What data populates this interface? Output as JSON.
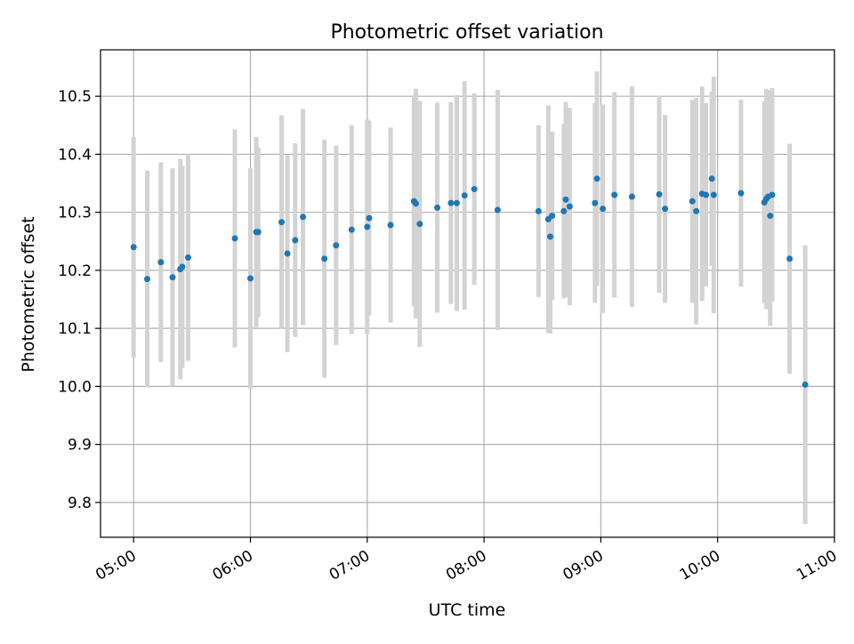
{
  "chart_data": {
    "type": "scatter",
    "title": "Photometric offset variation",
    "xlabel": "UTC time",
    "ylabel": "Photometric offset",
    "x_unit": "UTC time (HH:MM)",
    "x_tick_labels": [
      "05:00",
      "06:00",
      "07:00",
      "08:00",
      "09:00",
      "10:00",
      "11:00"
    ],
    "y_ticks": [
      9.8,
      9.9,
      10.0,
      10.1,
      10.2,
      10.3,
      10.4,
      10.5
    ],
    "y_tick_labels": [
      "9.8",
      "9.9",
      "10.0",
      "10.1",
      "10.2",
      "10.3",
      "10.4",
      "10.5"
    ],
    "xlim": [
      "04:43",
      "11:00"
    ],
    "ylim": [
      9.74,
      10.58
    ],
    "grid": true,
    "legend": "none",
    "colors": {
      "points": "#1f77b4",
      "errorbars": "#d3d3d3",
      "grid": "#b0b0b0"
    },
    "series": [
      {
        "points": [
          {
            "x": "05:00",
            "y": 10.24,
            "err": 0.19
          },
          {
            "x": "05:07",
            "y": 10.185,
            "err": 0.187
          },
          {
            "x": "05:14",
            "y": 10.214,
            "err": 0.172
          },
          {
            "x": "05:20",
            "y": 10.188,
            "err": 0.188
          },
          {
            "x": "05:24",
            "y": 10.202,
            "err": 0.19
          },
          {
            "x": "05:25",
            "y": 10.206,
            "err": 0.174
          },
          {
            "x": "05:28",
            "y": 10.222,
            "err": 0.178
          },
          {
            "x": "05:52",
            "y": 10.255,
            "err": 0.188
          },
          {
            "x": "06:00",
            "y": 10.186,
            "err": 0.19
          },
          {
            "x": "06:03",
            "y": 10.266,
            "err": 0.164
          },
          {
            "x": "06:04",
            "y": 10.266,
            "err": 0.146
          },
          {
            "x": "06:16",
            "y": 10.283,
            "err": 0.184
          },
          {
            "x": "06:19",
            "y": 10.229,
            "err": 0.17
          },
          {
            "x": "06:23",
            "y": 10.252,
            "err": 0.167
          },
          {
            "x": "06:27",
            "y": 10.292,
            "err": 0.186
          },
          {
            "x": "06:38",
            "y": 10.22,
            "err": 0.205
          },
          {
            "x": "06:44",
            "y": 10.243,
            "err": 0.172
          },
          {
            "x": "06:52",
            "y": 10.27,
            "err": 0.18
          },
          {
            "x": "07:00",
            "y": 10.275,
            "err": 0.185
          },
          {
            "x": "07:01",
            "y": 10.29,
            "err": 0.168
          },
          {
            "x": "07:12",
            "y": 10.278,
            "err": 0.168
          },
          {
            "x": "07:24",
            "y": 10.319,
            "err": 0.181
          },
          {
            "x": "07:25",
            "y": 10.315,
            "err": 0.198
          },
          {
            "x": "07:27",
            "y": 10.28,
            "err": 0.212
          },
          {
            "x": "07:36",
            "y": 10.308,
            "err": 0.181
          },
          {
            "x": "07:43",
            "y": 10.316,
            "err": 0.174
          },
          {
            "x": "07:46",
            "y": 10.316,
            "err": 0.186
          },
          {
            "x": "07:50",
            "y": 10.329,
            "err": 0.197
          },
          {
            "x": "07:55",
            "y": 10.34,
            "err": 0.165
          },
          {
            "x": "08:07",
            "y": 10.304,
            "err": 0.207
          },
          {
            "x": "08:28",
            "y": 10.302,
            "err": 0.148
          },
          {
            "x": "08:33",
            "y": 10.288,
            "err": 0.196
          },
          {
            "x": "08:34",
            "y": 10.258,
            "err": 0.167
          },
          {
            "x": "08:35",
            "y": 10.294,
            "err": 0.145
          },
          {
            "x": "08:41",
            "y": 10.302,
            "err": 0.15
          },
          {
            "x": "08:42",
            "y": 10.322,
            "err": 0.168
          },
          {
            "x": "08:44",
            "y": 10.31,
            "err": 0.17
          },
          {
            "x": "08:57",
            "y": 10.316,
            "err": 0.172
          },
          {
            "x": "08:58",
            "y": 10.358,
            "err": 0.185
          },
          {
            "x": "09:01",
            "y": 10.306,
            "err": 0.18
          },
          {
            "x": "09:07",
            "y": 10.33,
            "err": 0.177
          },
          {
            "x": "09:16",
            "y": 10.327,
            "err": 0.19
          },
          {
            "x": "09:30",
            "y": 10.331,
            "err": 0.17
          },
          {
            "x": "09:33",
            "y": 10.306,
            "err": 0.162
          },
          {
            "x": "09:47",
            "y": 10.319,
            "err": 0.175
          },
          {
            "x": "09:49",
            "y": 10.302,
            "err": 0.195
          },
          {
            "x": "09:52",
            "y": 10.332,
            "err": 0.185
          },
          {
            "x": "09:54",
            "y": 10.33,
            "err": 0.158
          },
          {
            "x": "09:57",
            "y": 10.358,
            "err": 0.15
          },
          {
            "x": "09:58",
            "y": 10.33,
            "err": 0.204
          },
          {
            "x": "10:12",
            "y": 10.333,
            "err": 0.161
          },
          {
            "x": "10:24",
            "y": 10.317,
            "err": 0.174
          },
          {
            "x": "10:25",
            "y": 10.323,
            "err": 0.19
          },
          {
            "x": "10:26",
            "y": 10.327,
            "err": 0.183
          },
          {
            "x": "10:27",
            "y": 10.294,
            "err": 0.19
          },
          {
            "x": "10:28",
            "y": 10.33,
            "err": 0.184
          },
          {
            "x": "10:37",
            "y": 10.22,
            "err": 0.198
          },
          {
            "x": "10:45",
            "y": 10.003,
            "err": 0.24
          }
        ]
      }
    ]
  }
}
